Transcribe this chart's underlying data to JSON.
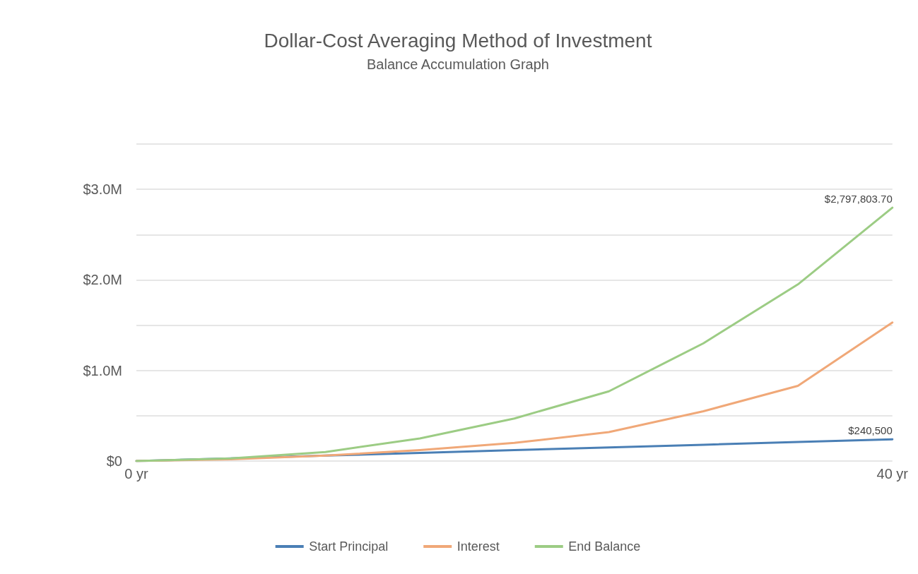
{
  "chart_data": {
    "type": "line",
    "title": "Dollar-Cost Averaging Method of Investment",
    "subtitle": "Balance Accumulation Graph",
    "x": [
      0,
      5,
      10,
      15,
      20,
      25,
      30,
      35,
      40
    ],
    "series": [
      {
        "name": "Start Principal",
        "color": "#4a7fb5",
        "values": [
          0,
          30000,
          60000,
          90000,
          120000,
          150000,
          180000,
          210000,
          240500
        ],
        "value_labels": [
          null,
          null,
          null,
          null,
          null,
          null,
          null,
          null,
          "$240,500"
        ]
      },
      {
        "name": "Interest",
        "color": "#f0a878",
        "values": [
          0,
          20000,
          60000,
          120000,
          200000,
          320000,
          550000,
          830000,
          1530000
        ]
      },
      {
        "name": "End Balance",
        "color": "#9ccc84",
        "values": [
          0,
          30000,
          100000,
          250000,
          470000,
          770000,
          1300000,
          1950000,
          2797803.7
        ],
        "value_labels": [
          null,
          null,
          null,
          null,
          null,
          null,
          null,
          null,
          "$2,797,803.70"
        ]
      }
    ],
    "xlim": [
      0,
      40
    ],
    "xticks": [
      {
        "value": 0,
        "label": "0 yr"
      },
      {
        "value": 40,
        "label": "40 yr"
      }
    ],
    "ylim": [
      0,
      3500000
    ],
    "yticks": [
      {
        "value": 0,
        "label": "$0"
      },
      {
        "value": 500000,
        "label": null
      },
      {
        "value": 1000000,
        "label": "$1.0M"
      },
      {
        "value": 1500000,
        "label": null
      },
      {
        "value": 2000000,
        "label": "$2.0M"
      },
      {
        "value": 2500000,
        "label": null
      },
      {
        "value": 3000000,
        "label": "$3.0M"
      },
      {
        "value": 3500000,
        "label": null
      }
    ],
    "grid": "y",
    "legend": "bottom",
    "marker": "none",
    "line_style": "solid"
  }
}
